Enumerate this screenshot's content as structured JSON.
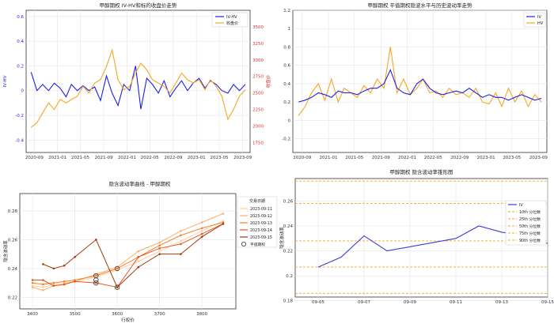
{
  "chart_data": [
    {
      "type": "line",
      "title": "甲醇期权 IV-HV和标的收盘价走势",
      "ylabel": "IV-HV",
      "ylabel_right": "收盘价",
      "x_ticks": [
        "2020-09",
        "2021-01",
        "2021-05",
        "2021-09",
        "2022-01",
        "2022-05",
        "2022-09",
        "2023-01",
        "2023-05",
        "2023-09"
      ],
      "ylim": [
        -0.5,
        0.65
      ],
      "yticks": [
        -0.4,
        -0.2,
        0.0,
        0.2,
        0.4,
        0.6
      ],
      "ylim_right": [
        1600,
        3750
      ],
      "yticks_right": [
        1750,
        2000,
        2250,
        2500,
        2750,
        3000,
        3250,
        3500
      ],
      "legend": "top-right",
      "series": [
        {
          "name": "IV-HV",
          "color": "#1f1fe6",
          "axis": "left",
          "x": [
            "2020-08-15",
            "2020-09-15",
            "2020-10-15",
            "2020-11-15",
            "2020-12-15",
            "2021-01-15",
            "2021-02-15",
            "2021-03-15",
            "2021-04-15",
            "2021-05-15",
            "2021-06-15",
            "2021-07-15",
            "2021-08-15",
            "2021-09-15",
            "2021-10-15",
            "2021-11-15",
            "2021-12-15",
            "2022-01-15",
            "2022-02-15",
            "2022-03-15",
            "2022-04-15",
            "2022-05-15",
            "2022-06-15",
            "2022-07-15",
            "2022-08-15",
            "2022-09-15",
            "2022-10-15",
            "2022-11-15",
            "2022-12-15",
            "2023-01-15",
            "2023-02-15",
            "2023-03-15",
            "2023-04-15",
            "2023-05-15",
            "2023-06-15",
            "2023-07-15",
            "2023-08-15",
            "2023-09-15"
          ],
          "values": [
            0.15,
            0.0,
            0.05,
            0.0,
            0.06,
            0.02,
            -0.05,
            0.05,
            0.0,
            0.04,
            0.0,
            0.03,
            -0.08,
            0.12,
            -0.02,
            -0.12,
            0.05,
            0.0,
            0.2,
            -0.15,
            0.1,
            0.05,
            -0.02,
            0.08,
            -0.05,
            0.02,
            0.08,
            0.0,
            0.06,
            0.1,
            0.02,
            0.08,
            0.05,
            0.0,
            -0.02,
            0.05,
            0.0,
            0.05
          ]
        },
        {
          "name": "收盘价",
          "color": "#f5a623",
          "axis": "right",
          "x": [
            "2020-08-15",
            "2020-09-15",
            "2020-10-15",
            "2020-11-15",
            "2020-12-15",
            "2021-01-15",
            "2021-02-15",
            "2021-03-15",
            "2021-04-15",
            "2021-05-15",
            "2021-06-15",
            "2021-07-15",
            "2021-08-15",
            "2021-09-15",
            "2021-10-15",
            "2021-11-15",
            "2021-12-15",
            "2022-01-15",
            "2022-02-15",
            "2022-03-15",
            "2022-04-15",
            "2022-05-15",
            "2022-06-15",
            "2022-07-15",
            "2022-08-15",
            "2022-09-15",
            "2022-10-15",
            "2022-11-15",
            "2022-12-15",
            "2023-01-15",
            "2023-02-15",
            "2023-03-15",
            "2023-04-15",
            "2023-05-15",
            "2023-06-15",
            "2023-07-15",
            "2023-08-15",
            "2023-09-15"
          ],
          "values": [
            1980,
            2050,
            2200,
            2350,
            2250,
            2400,
            2350,
            2400,
            2450,
            2600,
            2500,
            2650,
            2700,
            2900,
            3150,
            2700,
            2550,
            2600,
            2800,
            2950,
            2850,
            2700,
            2650,
            2600,
            2500,
            2650,
            2800,
            2700,
            2650,
            2700,
            2550,
            2700,
            2600,
            2450,
            2100,
            2250,
            2450,
            2550
          ]
        }
      ]
    },
    {
      "type": "line",
      "title": "甲醇期权 平值期权隐波水平与历史波动率走势",
      "x_ticks": [
        "2020-09",
        "2021-01",
        "2021-05",
        "2021-09",
        "2022-01",
        "2022-05",
        "2022-09",
        "2023-01",
        "2023-05",
        "2023-09"
      ],
      "ylim": [
        -0.35,
        1.2
      ],
      "yticks": [
        -0.2,
        0.0,
        0.2,
        0.4,
        0.6,
        0.8,
        1.0,
        1.2
      ],
      "legend": "top-right",
      "series": [
        {
          "name": "IV",
          "color": "#1f1fe6",
          "x": [
            "2020-08-15",
            "2020-09-15",
            "2020-10-15",
            "2020-11-15",
            "2020-12-15",
            "2021-01-15",
            "2021-02-15",
            "2021-03-15",
            "2021-04-15",
            "2021-05-15",
            "2021-06-15",
            "2021-07-15",
            "2021-08-15",
            "2021-09-15",
            "2021-10-15",
            "2021-11-15",
            "2021-12-15",
            "2022-01-15",
            "2022-02-15",
            "2022-03-15",
            "2022-04-15",
            "2022-05-15",
            "2022-06-15",
            "2022-07-15",
            "2022-08-15",
            "2022-09-15",
            "2022-10-15",
            "2022-11-15",
            "2022-12-15",
            "2023-01-15",
            "2023-02-15",
            "2023-03-15",
            "2023-04-15",
            "2023-05-15",
            "2023-06-15",
            "2023-07-15",
            "2023-08-15",
            "2023-09-15"
          ],
          "values": [
            0.2,
            0.22,
            0.25,
            0.3,
            0.28,
            0.25,
            0.32,
            0.3,
            0.3,
            0.28,
            0.32,
            0.35,
            0.35,
            0.4,
            0.55,
            0.35,
            0.3,
            0.28,
            0.4,
            0.45,
            0.35,
            0.3,
            0.28,
            0.3,
            0.32,
            0.3,
            0.35,
            0.3,
            0.25,
            0.28,
            0.25,
            0.25,
            0.22,
            0.25,
            0.28,
            0.25,
            0.22,
            0.24
          ]
        },
        {
          "name": "HV",
          "color": "#f5a623",
          "x": [
            "2020-08-15",
            "2020-09-15",
            "2020-10-15",
            "2020-11-15",
            "2020-12-15",
            "2021-01-15",
            "2021-02-15",
            "2021-03-15",
            "2021-04-15",
            "2021-05-15",
            "2021-06-15",
            "2021-07-15",
            "2021-08-15",
            "2021-09-15",
            "2021-10-15",
            "2021-11-15",
            "2021-12-15",
            "2022-01-15",
            "2022-02-15",
            "2022-03-15",
            "2022-04-15",
            "2022-05-15",
            "2022-06-15",
            "2022-07-15",
            "2022-08-15",
            "2022-09-15",
            "2022-10-15",
            "2022-11-15",
            "2022-12-15",
            "2023-01-15",
            "2023-02-15",
            "2023-03-15",
            "2023-04-15",
            "2023-05-15",
            "2023-06-15",
            "2023-07-15",
            "2023-08-15",
            "2023-09-15"
          ],
          "values": [
            0.05,
            0.15,
            0.3,
            0.4,
            0.22,
            0.45,
            0.2,
            0.35,
            0.3,
            0.25,
            0.38,
            0.3,
            0.45,
            0.35,
            0.8,
            0.3,
            0.45,
            0.28,
            0.35,
            0.45,
            0.3,
            0.32,
            0.25,
            0.35,
            0.28,
            0.3,
            0.25,
            0.35,
            0.2,
            0.18,
            0.3,
            0.15,
            0.35,
            0.2,
            0.32,
            0.15,
            0.28,
            0.2
          ]
        }
      ]
    },
    {
      "type": "line",
      "title": "隐含波动率曲线 - 甲醇期权",
      "xlabel": "行权价",
      "ylabel": "隐含波动率",
      "xlim": [
        3370,
        3880
      ],
      "ylim": [
        0.212,
        0.292
      ],
      "xticks": [
        3400,
        3500,
        3600,
        3700,
        3800
      ],
      "yticks": [
        0.22,
        0.24,
        0.26,
        0.28
      ],
      "legend": "top-right",
      "legend_title": "交易日期",
      "atm_label": "平值期权",
      "series": [
        {
          "name": "2023-09-11",
          "color": "#fdd0a2",
          "x": [
            3400,
            3425,
            3450,
            3475,
            3500,
            3550,
            3600,
            3650,
            3700,
            3750,
            3800,
            3850
          ],
          "values": [
            0.228,
            0.227,
            0.229,
            0.23,
            0.231,
            0.234,
            0.239,
            0.245,
            0.252,
            0.259,
            0.266,
            0.273
          ]
        },
        {
          "name": "2023-09-12",
          "color": "#fdae6b",
          "x": [
            3400,
            3425,
            3450,
            3475,
            3500,
            3550,
            3600,
            3650,
            3700,
            3750,
            3800,
            3850
          ],
          "values": [
            0.227,
            0.225,
            0.228,
            0.229,
            0.231,
            0.236,
            0.241,
            0.252,
            0.258,
            0.266,
            0.272,
            0.278
          ]
        },
        {
          "name": "2023-09-13",
          "color": "#f87e2b",
          "x": [
            3400,
            3425,
            3450,
            3475,
            3500,
            3550,
            3600,
            3650,
            3700,
            3750,
            3800,
            3850
          ],
          "values": [
            0.23,
            0.229,
            0.23,
            0.231,
            0.232,
            0.235,
            0.24,
            0.248,
            0.256,
            0.263,
            0.268,
            0.272
          ]
        },
        {
          "name": "2023-09-14",
          "color": "#e8561a",
          "x": [
            3400,
            3425,
            3450,
            3475,
            3500,
            3550,
            3600,
            3650,
            3700,
            3750,
            3800,
            3850
          ],
          "values": [
            0.232,
            0.232,
            0.228,
            0.229,
            0.231,
            0.23,
            0.227,
            0.248,
            0.254,
            0.257,
            0.264,
            0.271
          ]
        },
        {
          "name": "2023-09-15",
          "color": "#a63a0a",
          "x": [
            3425,
            3450,
            3475,
            3500,
            3550,
            3600,
            3650,
            3700,
            3750,
            3800,
            3850
          ],
          "values": [
            0.243,
            0.24,
            0.242,
            0.248,
            0.26,
            0.227,
            0.241,
            0.25,
            0.25,
            0.262,
            0.271
          ]
        }
      ],
      "atm_points": [
        {
          "x": 3550,
          "y": 0.235
        },
        {
          "x": 3550,
          "y": 0.232
        },
        {
          "x": 3550,
          "y": 0.23
        },
        {
          "x": 3600,
          "y": 0.24
        },
        {
          "x": 3600,
          "y": 0.227
        }
      ]
    },
    {
      "type": "line",
      "title": "甲醇期权 隐含波动率锥形图",
      "ylabel": "隐含波动率",
      "xlim": [
        "2023-09-04",
        "2023-09-15"
      ],
      "ylim": [
        0.183,
        0.278
      ],
      "x_ticks": [
        "09-05",
        "09-07",
        "09-09",
        "09-11",
        "09-13",
        "09-15"
      ],
      "yticks": [
        0.18,
        0.2,
        0.22,
        0.24,
        0.26
      ],
      "legend": "top-right",
      "series": [
        {
          "name": "IV",
          "color": "#3b3bd9",
          "x": [
            "2023-09-05",
            "2023-09-06",
            "2023-09-07",
            "2023-09-08",
            "2023-09-11",
            "2023-09-12",
            "2023-09-13",
            "2023-09-14",
            "2023-09-15"
          ],
          "values": [
            0.207,
            0.215,
            0.232,
            0.22,
            0.23,
            0.24,
            0.235,
            0.232,
            0.226
          ]
        }
      ],
      "hlines": [
        {
          "name": "10th 分位数",
          "value": 0.186,
          "color": "#f5a623"
        },
        {
          "name": "25th 分位数",
          "value": 0.207,
          "color": "#f5a623"
        },
        {
          "name": "50th 分位数",
          "value": 0.228,
          "color": "#f5a623"
        },
        {
          "name": "75th 分位数",
          "value": 0.258,
          "color": "#f5a623"
        },
        {
          "name": "90th 分位数",
          "value": 0.276,
          "color": "#f5a623"
        }
      ]
    }
  ]
}
